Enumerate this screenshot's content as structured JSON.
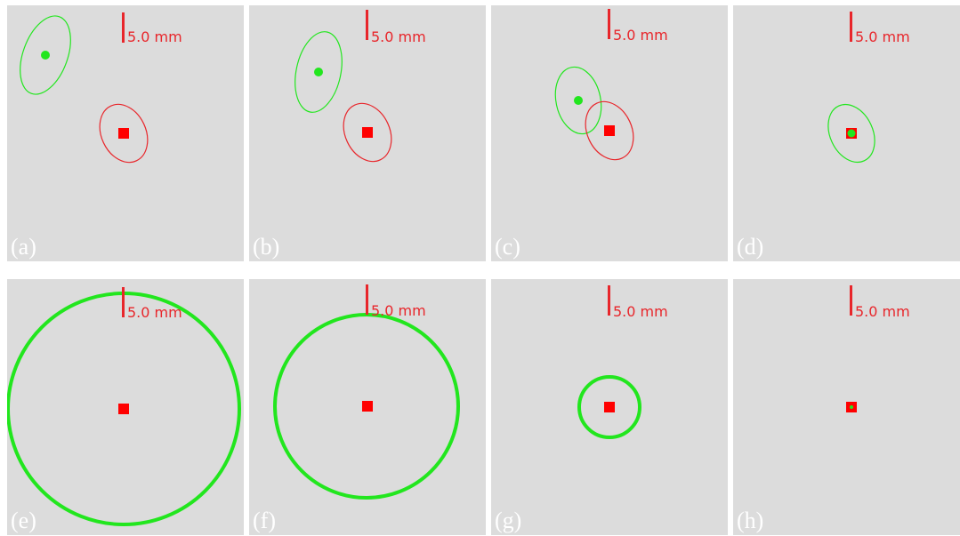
{
  "colors": {
    "background": "#ffffff",
    "panel_background": "#dcdcdc",
    "estimate": "#22e61e",
    "truth": "#ff0000",
    "truth_outline": "#e8262b",
    "scale": "#e8262b",
    "label": "#ffffff"
  },
  "scale_bar": {
    "label": "5.0 mm"
  },
  "panels": [
    {
      "label": "(a)",
      "type": "ellipse-pair",
      "markers": [
        "green-dot",
        "green-covariance-ellipse",
        "red-square",
        "red-covariance-ellipse"
      ]
    },
    {
      "label": "(b)",
      "type": "ellipse-pair",
      "markers": [
        "green-dot",
        "green-covariance-ellipse",
        "red-square",
        "red-covariance-ellipse"
      ]
    },
    {
      "label": "(c)",
      "type": "ellipse-pair",
      "markers": [
        "green-dot",
        "green-covariance-ellipse",
        "red-square",
        "red-covariance-ellipse"
      ]
    },
    {
      "label": "(d)",
      "type": "ellipse-pair",
      "markers": [
        "green-dot",
        "green-covariance-ellipse",
        "red-square"
      ]
    },
    {
      "label": "(e)",
      "type": "circle",
      "markers": [
        "green-circle",
        "red-square"
      ]
    },
    {
      "label": "(f)",
      "type": "circle",
      "markers": [
        "green-circle",
        "red-square"
      ]
    },
    {
      "label": "(g)",
      "type": "circle",
      "markers": [
        "green-circle",
        "red-square"
      ]
    },
    {
      "label": "(h)",
      "type": "circle",
      "markers": [
        "green-dot",
        "red-square"
      ]
    }
  ]
}
